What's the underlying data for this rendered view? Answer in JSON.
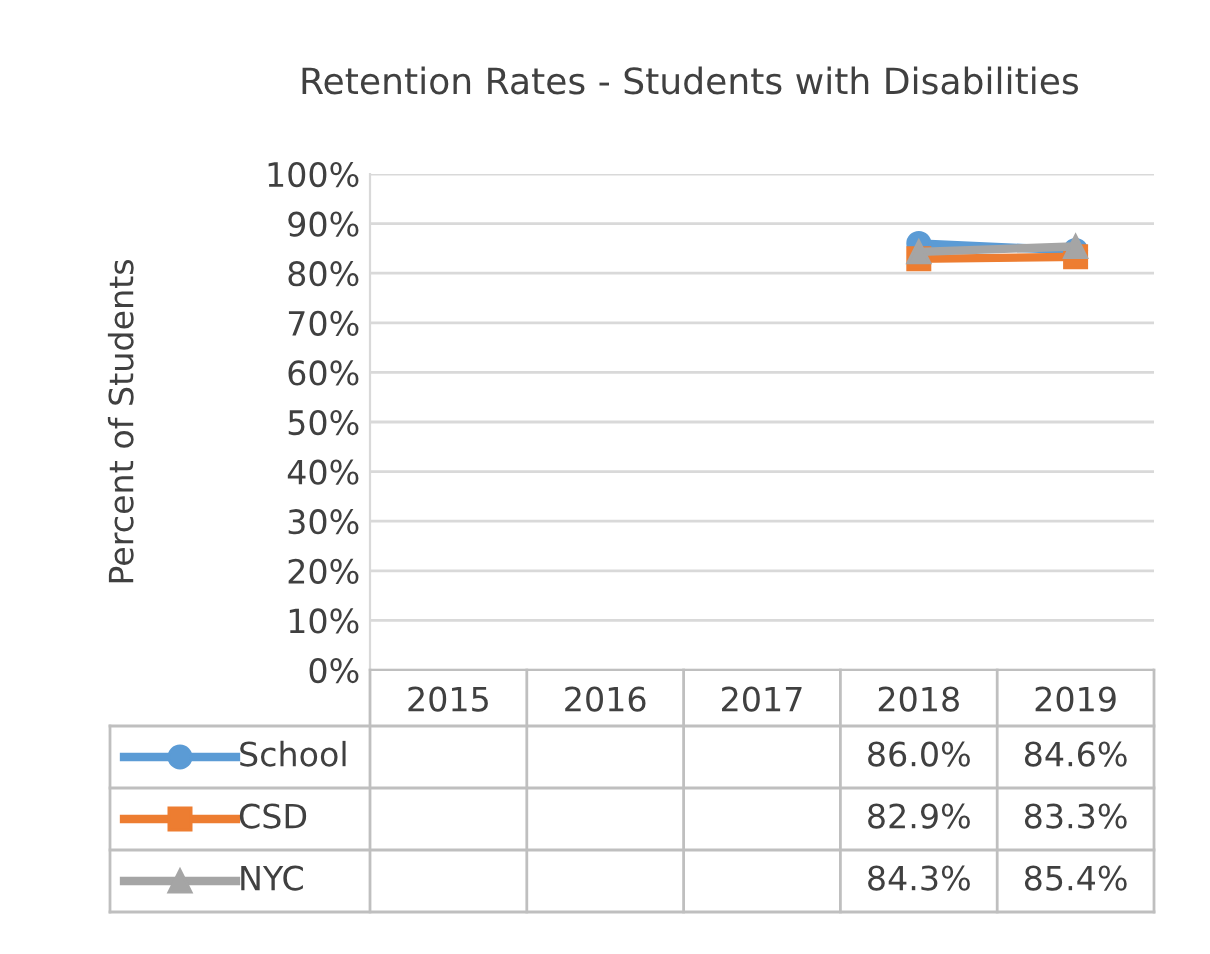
{
  "chart_data": {
    "type": "line",
    "title": "Retention Rates - Students with Disabilities",
    "ylabel": "Percent of Students",
    "categories": [
      "2015",
      "2016",
      "2017",
      "2018",
      "2019"
    ],
    "series": [
      {
        "name": "School",
        "color": "#5b9bd5",
        "marker": "circle",
        "values": [
          null,
          null,
          null,
          86.0,
          84.6
        ],
        "value_labels": [
          null,
          null,
          null,
          "86.0%",
          "84.6%"
        ]
      },
      {
        "name": "CSD",
        "color": "#ed7d31",
        "marker": "square",
        "values": [
          null,
          null,
          null,
          82.9,
          83.3
        ],
        "value_labels": [
          null,
          null,
          null,
          "82.9%",
          "83.3%"
        ]
      },
      {
        "name": "NYC",
        "color": "#a5a5a5",
        "marker": "triangle",
        "values": [
          null,
          null,
          null,
          84.3,
          85.4
        ],
        "value_labels": [
          null,
          null,
          null,
          "84.3%",
          "85.4%"
        ]
      }
    ],
    "ylim": [
      0,
      100
    ],
    "yticks": [
      {
        "value": 0,
        "label": "0%"
      },
      {
        "value": 10,
        "label": "10%"
      },
      {
        "value": 20,
        "label": "20%"
      },
      {
        "value": 30,
        "label": "30%"
      },
      {
        "value": 40,
        "label": "40%"
      },
      {
        "value": 50,
        "label": "50%"
      },
      {
        "value": 60,
        "label": "60%"
      },
      {
        "value": 70,
        "label": "70%"
      },
      {
        "value": 80,
        "label": "80%"
      },
      {
        "value": 90,
        "label": "90%"
      },
      {
        "value": 100,
        "label": "100%"
      }
    ],
    "grid": "y",
    "legend": "bottom left"
  }
}
